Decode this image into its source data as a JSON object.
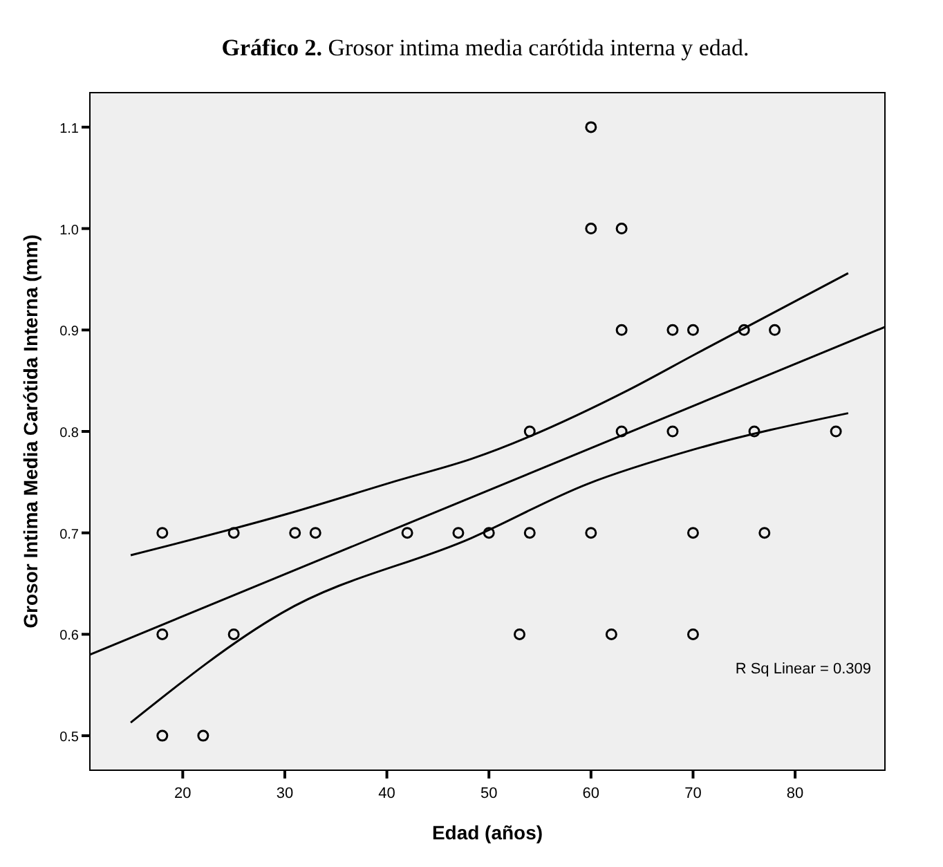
{
  "chart_data": {
    "type": "scatter",
    "title": "Gráfico 2. Grosor intima media carótida interna y edad.",
    "xlabel": "Edad (años)",
    "ylabel": "Grosor Intima Media Carótida Interna (mm)",
    "xlim": [
      10.9,
      88.8
    ],
    "xticks": [
      20,
      30,
      40,
      50,
      60,
      70,
      80
    ],
    "ylim": [
      0.466,
      1.134
    ],
    "yticks": [
      0.5,
      0.6,
      0.7,
      0.8,
      0.9,
      {
        "value": 1.0,
        "label": "1.0"
      },
      1.1
    ],
    "grid": false,
    "marker": "circle",
    "annotations": [
      "R Sq Linear = 0.309"
    ],
    "series": [
      {
        "color": "#000000",
        "x": [
          18,
          18,
          18,
          22,
          25,
          25,
          31,
          33,
          42,
          47,
          50,
          53,
          54,
          54,
          60,
          60,
          60,
          62,
          63,
          63,
          63,
          68,
          68,
          70,
          70,
          70,
          75,
          76,
          77,
          78,
          84
        ],
        "values": [
          0.7,
          0.6,
          0.5,
          0.5,
          0.7,
          0.6,
          0.7,
          0.7,
          0.7,
          0.7,
          0.7,
          0.6,
          0.8,
          0.7,
          1.1,
          1.0,
          0.7,
          0.6,
          1.0,
          0.9,
          0.8,
          0.9,
          0.8,
          0.9,
          0.7,
          0.6,
          0.9,
          0.8,
          0.7,
          0.9,
          0.8
        ]
      },
      {
        "type": "line",
        "color": "#000000",
        "marker": "none",
        "x": [
          10.9,
          88.8
        ],
        "values": [
          0.58,
          0.903
        ]
      },
      {
        "type": "line",
        "color": "#000000",
        "marker": "none",
        "x": [
          14.9,
          30,
          41.2,
          48.3,
          63.7,
          70,
          85.2
        ],
        "values": [
          0.678,
          0.718,
          0.752,
          0.773,
          0.841,
          0.875,
          0.956
        ]
      },
      {
        "type": "line",
        "color": "#000000",
        "marker": "none",
        "x": [
          14.9,
          29.7,
          48.3,
          59.6,
          70,
          85.2
        ],
        "values": [
          0.513,
          0.621,
          0.695,
          0.748,
          0.782,
          0.818
        ]
      }
    ]
  }
}
